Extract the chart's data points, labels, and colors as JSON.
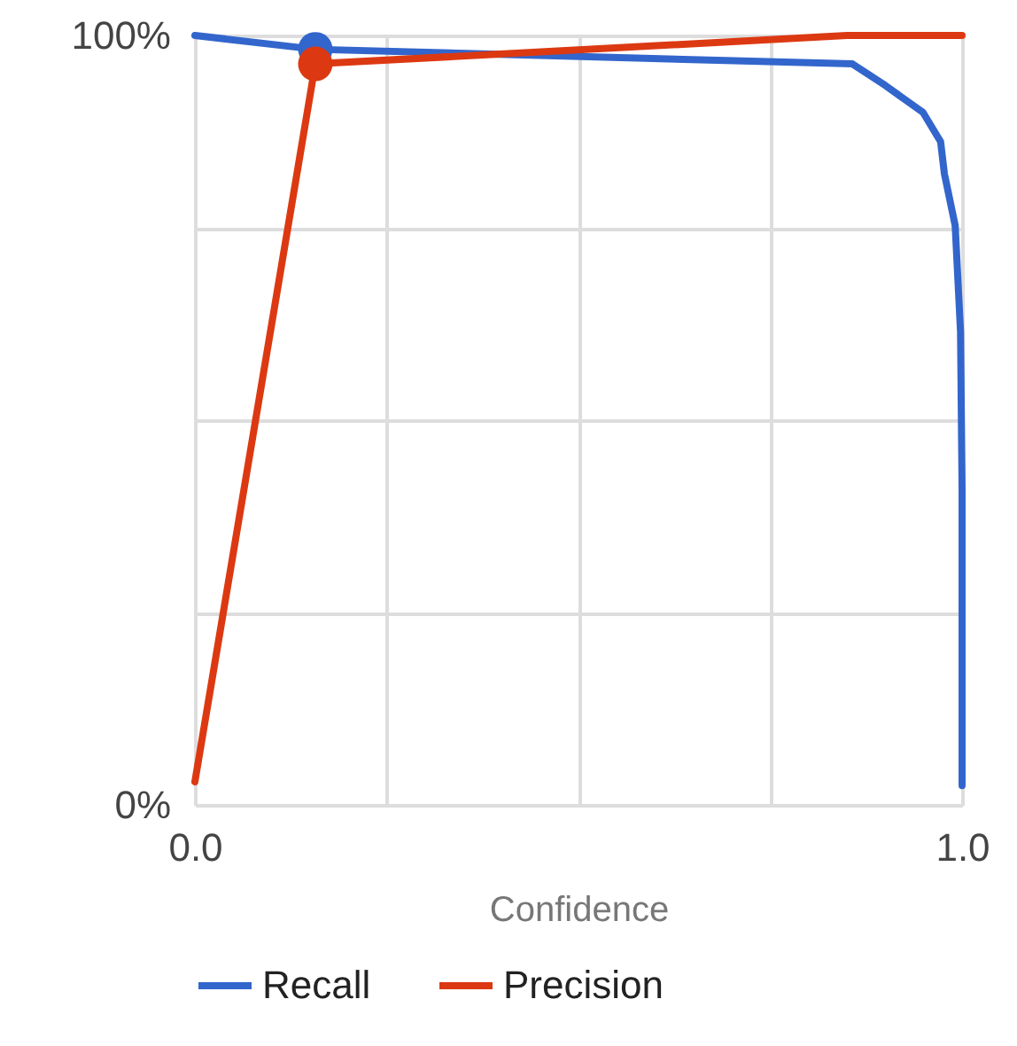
{
  "chart_data": {
    "type": "line",
    "xlabel": "Confidence",
    "xlim": [
      0,
      1
    ],
    "ylim": [
      0,
      100
    ],
    "xticks": [
      {
        "value": 0,
        "label": "0.0"
      },
      {
        "value": 0.25,
        "label": null
      },
      {
        "value": 0.5,
        "label": null
      },
      {
        "value": 0.75,
        "label": null
      },
      {
        "value": 1,
        "label": "1.0"
      }
    ],
    "yticks": [
      {
        "value": 0,
        "label": "0%"
      },
      {
        "value": 25,
        "label": null
      },
      {
        "value": 50,
        "label": null
      },
      {
        "value": 75,
        "label": null
      },
      {
        "value": 100,
        "label": "100%"
      }
    ],
    "grid": true,
    "legend": "bottom",
    "series": [
      {
        "name": "Recall",
        "color": "#3366cc",
        "x": [
          0,
          0.157,
          0.857,
          0.9,
          0.949,
          0.972,
          0.977,
          0.991,
          0.998,
          1,
          1
        ],
        "values": [
          100,
          98.2,
          96.3,
          93.5,
          90,
          86.2,
          82,
          75.3,
          61.5,
          41,
          2.5
        ]
      },
      {
        "name": "Precision",
        "color": "#dc3912",
        "x": [
          0,
          0.157,
          0.85,
          1
        ],
        "values": [
          3,
          96.3,
          100,
          100
        ]
      },
      {
        "type": "scatter",
        "color": "#3366cc",
        "x": [
          0.157
        ],
        "values": [
          98.2
        ]
      },
      {
        "type": "scatter",
        "color": "#dc3912",
        "x": [
          0.157
        ],
        "values": [
          96.3
        ]
      }
    ]
  }
}
